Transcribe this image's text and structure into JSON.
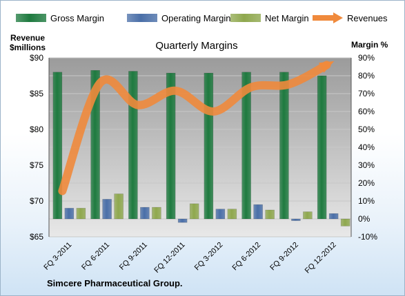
{
  "chart_data": {
    "type": "bar",
    "title": "Quarterly Margins",
    "categories": [
      "FQ 3-2011",
      "FQ 6-2011",
      "FQ 9-2011",
      "FQ 12-2011",
      "FQ 3-2012",
      "FQ 6-2012",
      "FQ 9-2012",
      "FQ 12-2012"
    ],
    "series": [
      {
        "name": "Gross Margin",
        "axis": "right",
        "type": "bar",
        "color": "#1e7a3f",
        "values": [
          82,
          83,
          82.5,
          81.5,
          81.5,
          82,
          82,
          80
        ]
      },
      {
        "name": "Operating Margin",
        "axis": "right",
        "type": "bar",
        "color": "#4a6fa8",
        "values": [
          6,
          11,
          6.5,
          -2,
          5.5,
          8,
          -1,
          3
        ]
      },
      {
        "name": "Net Margin",
        "axis": "right",
        "type": "bar",
        "color": "#8fa84e",
        "values": [
          6,
          14,
          6.5,
          8.5,
          5.5,
          5,
          4,
          -4
        ]
      },
      {
        "name": "Revenues",
        "axis": "left",
        "type": "line",
        "color": "#f08a3c",
        "values": [
          71.4,
          86.5,
          83.4,
          85.4,
          82.5,
          85.9,
          86.3,
          89.0
        ]
      }
    ],
    "y_left": {
      "label": "Revenue $millions",
      "min": 65,
      "max": 90,
      "ticks": [
        "$65",
        "$70",
        "$75",
        "$80",
        "$85",
        "$90"
      ]
    },
    "y_right": {
      "label": "Margin %",
      "min": -10,
      "max": 90,
      "ticks": [
        "-10%",
        "0%",
        "10%",
        "20%",
        "30%",
        "40%",
        "50%",
        "60%",
        "70%",
        "80%",
        "90%"
      ]
    },
    "grid": true,
    "legend": "top"
  },
  "labels": {
    "left_axis_title_1": "Revenue",
    "left_axis_title_2": "$millions",
    "right_axis_title": "Margin %",
    "source": "Simcere Pharmaceutical Group."
  }
}
